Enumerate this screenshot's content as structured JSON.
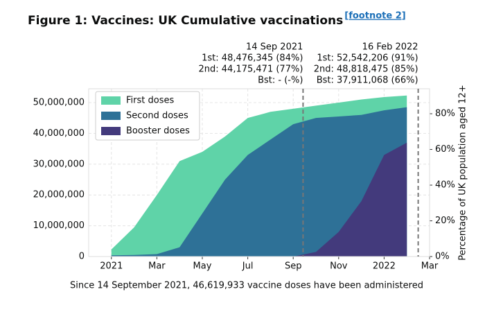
{
  "chart_data": {
    "type": "area",
    "title": "Figure 1: Vaccines: UK Cumulative vaccinations",
    "footnote": "[footnote 2]",
    "caption": "Since 14 September 2021, 46,619,933 vaccine doses have been administered",
    "y2label": "Percentage of UK population aged 12+",
    "x": [
      "2021-01",
      "2021-02",
      "2021-03",
      "2021-04",
      "2021-05",
      "2021-06",
      "2021-07",
      "2021-08",
      "2021-09",
      "2021-10",
      "2021-11",
      "2021-12",
      "2022-01",
      "2022-02"
    ],
    "series": [
      {
        "name": "First doses",
        "color": "#5fd3a8",
        "values": [
          2300000,
          9500000,
          20000000,
          31000000,
          34000000,
          39000000,
          45000000,
          47000000,
          48000000,
          49000000,
          50000000,
          51000000,
          51800000,
          52300000
        ]
      },
      {
        "name": "Second doses",
        "color": "#2e7197",
        "values": [
          400000,
          500000,
          800000,
          3000000,
          14000000,
          25000000,
          33000000,
          38000000,
          43000000,
          45000000,
          45500000,
          46000000,
          47500000,
          48500000
        ]
      },
      {
        "name": "Booster doses",
        "color": "#433a7c",
        "values": [
          null,
          null,
          null,
          null,
          null,
          null,
          null,
          null,
          0,
          1500000,
          8000000,
          18000000,
          33000000,
          37000000
        ]
      }
    ],
    "xlim": [
      "2020-12",
      "2022-03"
    ],
    "xticks": [
      {
        "value": "2021-01",
        "label": "2021"
      },
      {
        "value": "2021-03",
        "label": "Mar"
      },
      {
        "value": "2021-05",
        "label": "May"
      },
      {
        "value": "2021-07",
        "label": "Jul"
      },
      {
        "value": "2021-09",
        "label": "Sep"
      },
      {
        "value": "2021-11",
        "label": "Nov"
      },
      {
        "value": "2022-01",
        "label": "2022"
      },
      {
        "value": "2022-03",
        "label": "Mar"
      }
    ],
    "ylim": [
      0,
      54500000
    ],
    "yticks": [
      {
        "value": 0,
        "label": "0"
      },
      {
        "value": 10000000,
        "label": "10,000,000"
      },
      {
        "value": 20000000,
        "label": "20,000,000"
      },
      {
        "value": 30000000,
        "label": "30,000,000"
      },
      {
        "value": 40000000,
        "label": "40,000,000"
      },
      {
        "value": 50000000,
        "label": "50,000,000"
      }
    ],
    "y2lim": [
      0,
      94
    ],
    "y2ticks": [
      {
        "value": 0,
        "label": "0%"
      },
      {
        "value": 20,
        "label": "20%"
      },
      {
        "value": 40,
        "label": "40%"
      },
      {
        "value": 60,
        "label": "60%"
      },
      {
        "value": 80,
        "label": "80%"
      }
    ],
    "grid": true,
    "legend": "upper-left",
    "annotations": [
      {
        "x": "2021-09-14",
        "lines": [
          "14 Sep 2021",
          "1st: 48,476,345 (84%)",
          "2nd: 44,175,471 (77%)",
          "Bst: - (-%)"
        ]
      },
      {
        "x": "2022-02-16",
        "lines": [
          "16 Feb 2022",
          "1st: 52,542,206 (91%)",
          "2nd: 48,818,475 (85%)",
          "Bst: 37,911,068 (66%)"
        ]
      }
    ]
  }
}
